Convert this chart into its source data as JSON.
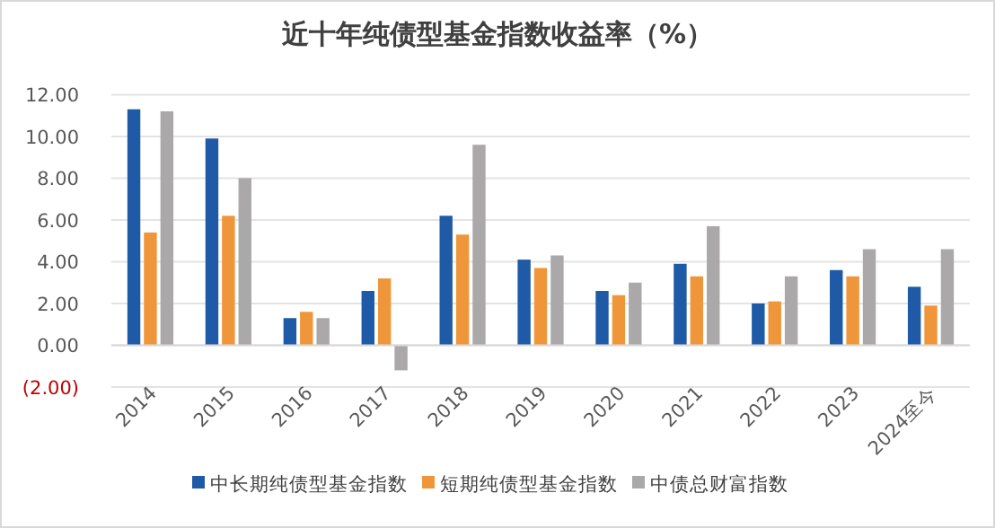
{
  "chart_data": {
    "type": "bar",
    "title": "近十年纯债型基金指数收益率（%）",
    "categories": [
      "2014",
      "2015",
      "2016",
      "2017",
      "2018",
      "2019",
      "2020",
      "2021",
      "2022",
      "2023",
      "2024至今"
    ],
    "series": [
      {
        "name": "中长期纯债型基金指数",
        "color": "#1f5aa6",
        "values": [
          11.3,
          9.9,
          1.3,
          2.6,
          6.2,
          4.1,
          2.6,
          3.9,
          2.0,
          3.6,
          2.8
        ]
      },
      {
        "name": "短期纯债型基金指数",
        "color": "#f0963a",
        "values": [
          5.4,
          6.2,
          1.6,
          3.2,
          5.3,
          3.7,
          2.4,
          3.3,
          2.1,
          3.3,
          1.9
        ]
      },
      {
        "name": "中债总财富指数",
        "color": "#aaa8a8",
        "values": [
          11.2,
          8.0,
          1.3,
          -1.2,
          9.6,
          4.3,
          3.0,
          5.7,
          3.3,
          4.6,
          4.6
        ]
      }
    ],
    "ylim": [
      -2,
      12
    ],
    "yticks": [
      {
        "value": -2,
        "label": "(2.00)"
      },
      {
        "value": 0,
        "label": "0.00"
      },
      {
        "value": 2,
        "label": "2.00"
      },
      {
        "value": 4,
        "label": "4.00"
      },
      {
        "value": 6,
        "label": "6.00"
      },
      {
        "value": 8,
        "label": "8.00"
      },
      {
        "value": 10,
        "label": "10.00"
      },
      {
        "value": 12,
        "label": "12.00"
      }
    ],
    "grid": "y",
    "legend": "bottom"
  }
}
